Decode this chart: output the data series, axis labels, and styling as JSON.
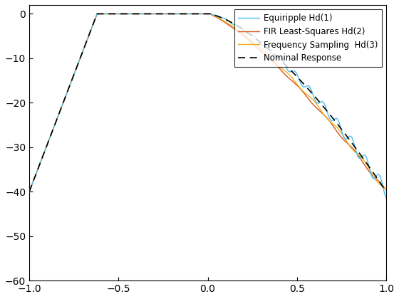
{
  "title": "",
  "xlim": [
    -1,
    1
  ],
  "ylim": [
    -60,
    2
  ],
  "yticks": [
    0,
    -10,
    -20,
    -30,
    -40,
    -50,
    -60
  ],
  "xticks": [
    -1,
    -0.5,
    0,
    0.5,
    1
  ],
  "legend_labels": [
    "Equiripple Hd(1)",
    "FIR Least-Squares Hd(2)",
    "Frequency Sampling  Hd(3)",
    "Nominal Response"
  ],
  "colors": {
    "equiripple": "#4DBEEE",
    "fir_ls": "#D95319",
    "freq_samp": "#EDB120",
    "nominal": "#000000"
  },
  "linewidths": {
    "equiripple": 1.0,
    "fir_ls": 1.0,
    "freq_samp": 1.0,
    "nominal": 1.2
  },
  "background_color": "#ffffff"
}
